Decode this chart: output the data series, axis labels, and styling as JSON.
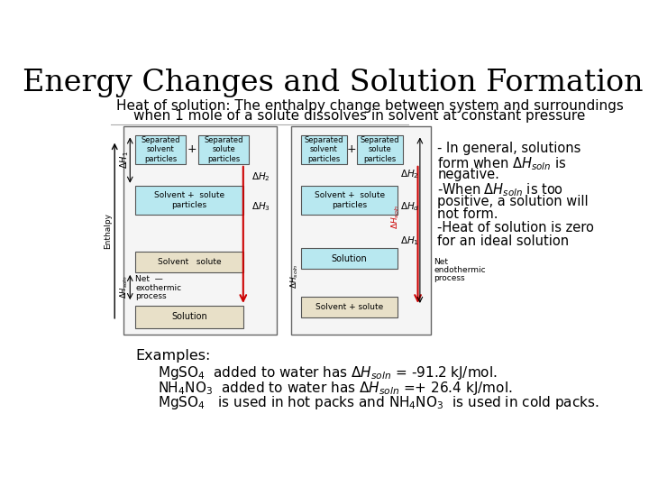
{
  "title": "Energy Changes and Solution Formation",
  "subtitle_line1": "Heat of solution: The enthalpy change between system and surroundings",
  "subtitle_line2": "    when 1 mole of a solute dissolves in solvent at constant pressure",
  "bg_color": "#ffffff",
  "text_color": "#000000",
  "title_fontsize": 24,
  "subtitle_fontsize": 11,
  "body_fontsize": 11,
  "example_fontsize": 11,
  "cyan_box_color": "#b8e8f0",
  "tan_box_color": "#e8e0c8",
  "diagram_bg": "#f5f5f5",
  "diagram_border": "#888888",
  "red_arrow_color": "#cc0000"
}
